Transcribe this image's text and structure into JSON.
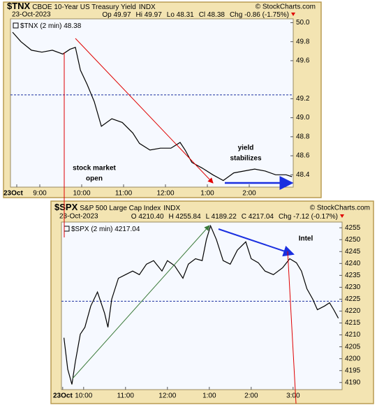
{
  "chart_data": [
    {
      "type": "line",
      "symbol": "$TNX",
      "title": "CBOE 10-Year US Treasury Yield",
      "exchange": "INDX",
      "watermark": "© StockCharts.com",
      "date": "23-Oct-2023",
      "stats": [
        "Op 49.97",
        "Hi 49.97",
        "Lo 48.31",
        "Cl 48.38",
        "Chg -0.86 (-1.75%)"
      ],
      "x": [
        8.35,
        8.55,
        8.8,
        9.05,
        9.3,
        9.55,
        9.72,
        9.85,
        9.97,
        10.13,
        10.3,
        10.47,
        10.72,
        10.97,
        11.22,
        11.38,
        11.63,
        11.88,
        12.13,
        12.35,
        12.47,
        12.63,
        12.88,
        13.13,
        13.38,
        13.63,
        13.88,
        14.13,
        14.38,
        14.63,
        14.88,
        15.02
      ],
      "series": [
        {
          "name": "$TNX (2 min) 48.38",
          "color": "#000000",
          "values": [
            49.9,
            49.8,
            49.71,
            49.69,
            49.71,
            49.67,
            49.72,
            49.74,
            49.5,
            49.35,
            49.17,
            48.91,
            48.99,
            48.95,
            48.84,
            48.73,
            48.66,
            48.68,
            48.68,
            48.74,
            48.66,
            48.53,
            48.47,
            48.4,
            48.34,
            48.42,
            48.44,
            48.46,
            48.44,
            48.4,
            48.4,
            48.38
          ]
        }
      ],
      "reference_value": 49.24,
      "ylim": [
        48.27,
        50.04
      ],
      "yticks": [
        {
          "value": 50,
          "label": "50.0"
        },
        49.8,
        49.6,
        49.2,
        {
          "value": 49,
          "label": "49.0"
        },
        48.8,
        48.6,
        48.4
      ],
      "xlim": [
        8.3,
        15.05
      ],
      "xticks": [
        {
          "value": 8.45,
          "label": "23Oct"
        },
        {
          "value": 9,
          "label": "9:00"
        },
        {
          "value": 10,
          "label": "10:00"
        },
        {
          "value": 11,
          "label": "11:00"
        },
        {
          "value": 12,
          "label": "12:00"
        },
        {
          "value": 13,
          "label": "1:00"
        },
        {
          "value": 14,
          "label": "2:00"
        }
      ],
      "annotations": [
        [
          "stock market",
          "open"
        ],
        [
          "yield",
          "stabilizes"
        ]
      ]
    },
    {
      "type": "line",
      "symbol": "$SPX",
      "title": "S&P 500 Large Cap Index",
      "exchange": "INDX",
      "watermark": "© StockCharts.com",
      "date": "23-Oct-2023",
      "stats": [
        "O 4210.40",
        "H 4255.84",
        "L 4189.22",
        "C 4217.04",
        "Chg -7.12 (-0.17%)"
      ],
      "x": [
        9.53,
        9.62,
        9.72,
        9.8,
        9.92,
        10.03,
        10.17,
        10.33,
        10.5,
        10.58,
        10.67,
        10.83,
        11,
        11.17,
        11.33,
        11.5,
        11.67,
        11.87,
        12,
        12.17,
        12.37,
        12.5,
        12.67,
        12.83,
        12.93,
        13.03,
        13.17,
        13.33,
        13.5,
        13.67,
        13.87,
        14,
        14.17,
        14.33,
        14.53,
        14.75,
        14.92,
        15.08,
        15.2,
        15.33,
        15.47,
        15.58,
        15.75,
        15.87,
        15.97,
        16.08
      ],
      "series": [
        {
          "name": "$SPX (2 min) 4217.04",
          "color": "#000000",
          "values": [
            4208.8,
            4195.6,
            4189.2,
            4198.5,
            4210.3,
            4213.2,
            4222.1,
            4228,
            4219.1,
            4213.2,
            4225,
            4233.8,
            4235.3,
            4236.8,
            4235.3,
            4239.7,
            4241.2,
            4236.8,
            4241.2,
            4239.1,
            4233.8,
            4239.7,
            4242,
            4241.2,
            4250,
            4255.8,
            4250,
            4241.2,
            4239.7,
            4245.6,
            4249.1,
            4242,
            4240.3,
            4236.8,
            4235.3,
            4238.2,
            4242,
            4240.3,
            4236.8,
            4229.4,
            4225,
            4220.6,
            4222.1,
            4223.5,
            4220.6,
            4217
          ]
        }
      ],
      "reference_value": 4224.16,
      "ylim": [
        4187,
        4257.4
      ],
      "yticks": [
        4190,
        4195,
        4200,
        4205,
        4210,
        4215,
        4220,
        4225,
        4230,
        4235,
        4240,
        4245,
        4250,
        4255
      ],
      "xlim": [
        9.47,
        16.17
      ],
      "xticks": [
        {
          "value": 9.5,
          "label": "23Oct"
        },
        {
          "value": 10,
          "label": "10:00"
        },
        {
          "value": 11,
          "label": "11:00"
        },
        {
          "value": 12,
          "label": "12:00"
        },
        {
          "value": 13,
          "label": "1:00"
        },
        {
          "value": 14,
          "label": "2:00"
        },
        {
          "value": 15,
          "label": "3:00"
        }
      ],
      "annotations": [
        [
          "Intel"
        ]
      ]
    }
  ]
}
